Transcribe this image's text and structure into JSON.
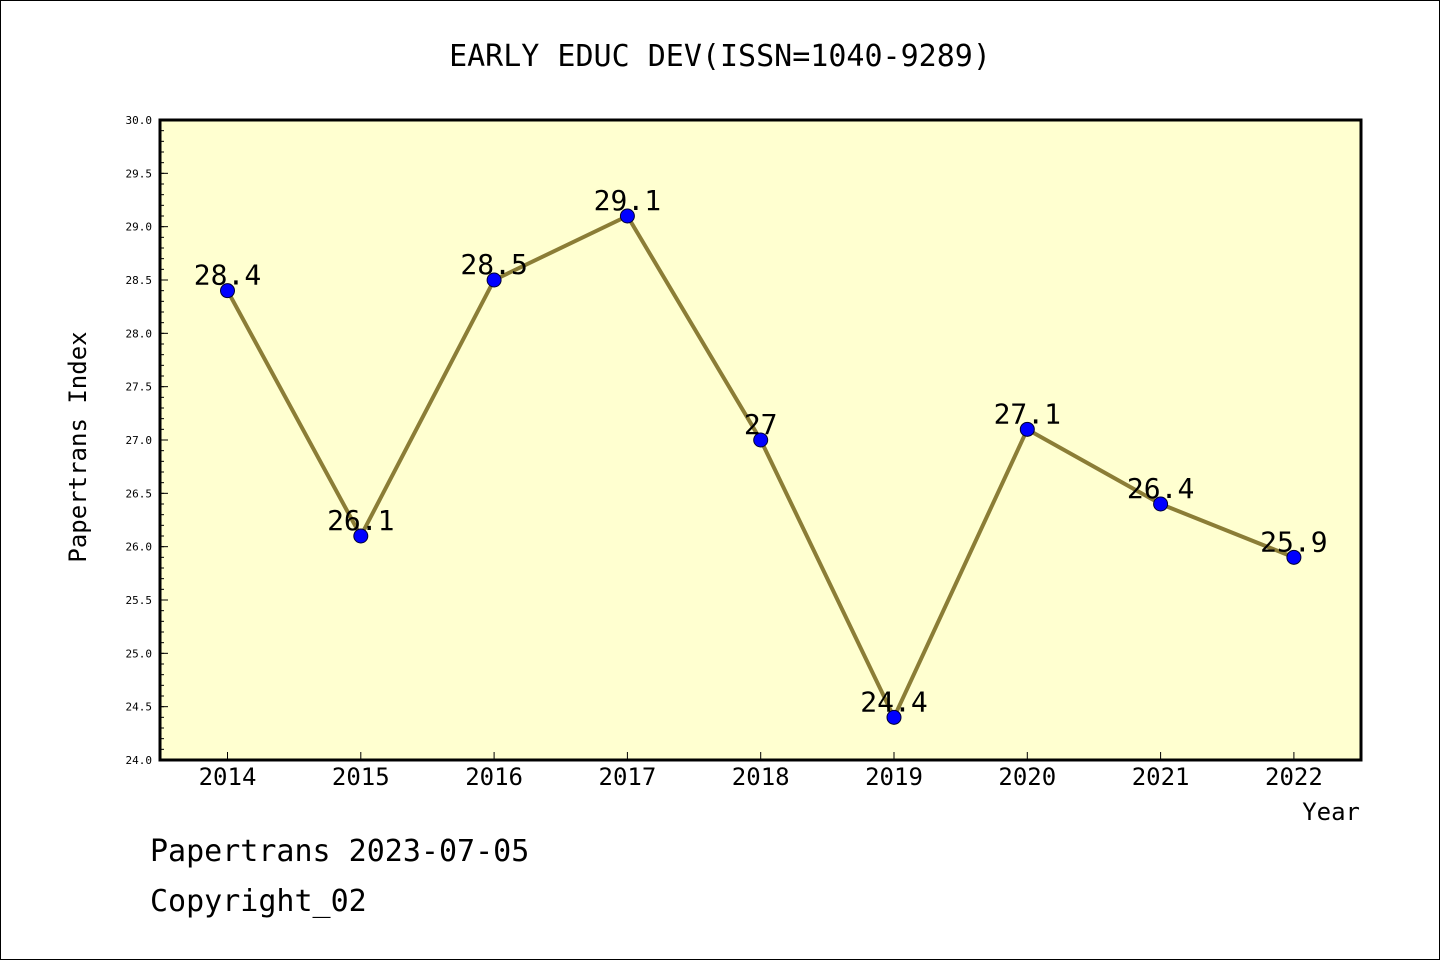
{
  "chart_data": {
    "type": "line",
    "title": "EARLY EDUC DEV(ISSN=1040-9289)",
    "xlabel": "Year",
    "ylabel": "Papertrans Index",
    "categories": [
      "2014",
      "2015",
      "2016",
      "2017",
      "2018",
      "2019",
      "2020",
      "2021",
      "2022"
    ],
    "series": [
      {
        "values": [
          28.4,
          26.1,
          28.5,
          29.1,
          27.0,
          24.4,
          27.1,
          26.4,
          25.9
        ],
        "data_labels": [
          "28.4",
          "26.1",
          "28.5",
          "29.1",
          "27",
          "24.4",
          "27.1",
          "26.4",
          "25.9"
        ]
      }
    ],
    "ylim": [
      24.0,
      30.0
    ],
    "ytick_labels": [
      "24.0",
      "24.5",
      "25.0",
      "25.5",
      "26.0",
      "26.5",
      "27.0",
      "27.5",
      "28.0",
      "28.5",
      "29.0",
      "29.5",
      "30.0"
    ],
    "grid": false,
    "legend": "none",
    "colors": {
      "plot_background": "#ffffd0",
      "line": "#8b7d36",
      "marker": "#0000ff"
    }
  },
  "footer": {
    "line1": "Papertrans 2023-07-05",
    "line2": "Copyright_02"
  }
}
